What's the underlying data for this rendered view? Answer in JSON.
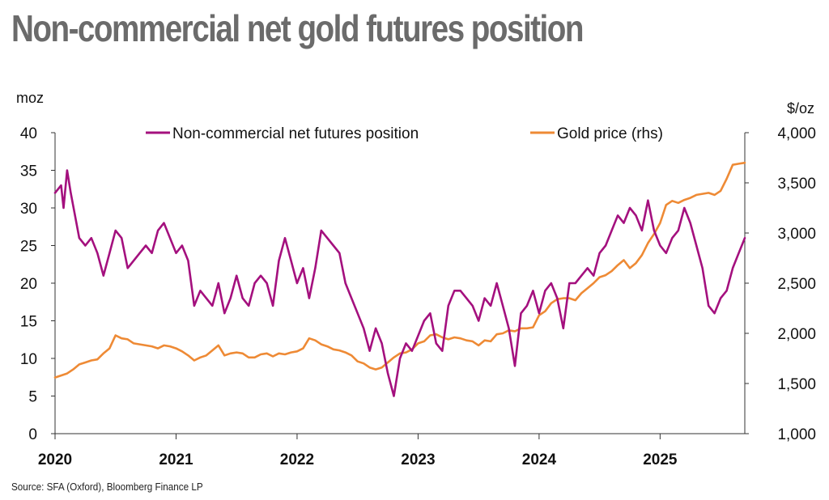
{
  "title": "Non-commercial net gold futures position",
  "source": "Source: SFA (Oxford), Bloomberg Finance LP",
  "chart_data": {
    "type": "line",
    "title": "Non-commercial net gold futures position",
    "y_left_label": "moz",
    "y_right_label": "$/oz",
    "y_left_lim": [
      0,
      40
    ],
    "y_left_ticks": [
      "0",
      "5",
      "10",
      "15",
      "20",
      "25",
      "30",
      "35",
      "40"
    ],
    "y_right_lim": [
      1000,
      4000
    ],
    "y_right_ticks": [
      "1,000",
      "1,500",
      "2,000",
      "2,500",
      "3,000",
      "3,500",
      "4,000"
    ],
    "x_lim": [
      2020.0,
      2025.7
    ],
    "x_ticks": [
      "2020",
      "2021",
      "2022",
      "2023",
      "2024",
      "2025"
    ],
    "grid": false,
    "legend_position": "top",
    "series": [
      {
        "name": "Non-commercial net futures position",
        "axis": "left",
        "color": "#a4107e",
        "x": [
          2020.0,
          2020.05,
          2020.07,
          2020.1,
          2020.13,
          2020.2,
          2020.25,
          2020.3,
          2020.35,
          2020.4,
          2020.45,
          2020.5,
          2020.55,
          2020.6,
          2020.65,
          2020.7,
          2020.75,
          2020.8,
          2020.85,
          2020.9,
          2020.95,
          2021.0,
          2021.05,
          2021.1,
          2021.15,
          2021.2,
          2021.25,
          2021.3,
          2021.35,
          2021.4,
          2021.45,
          2021.5,
          2021.55,
          2021.6,
          2021.65,
          2021.7,
          2021.75,
          2021.8,
          2021.85,
          2021.9,
          2021.95,
          2022.0,
          2022.05,
          2022.1,
          2022.15,
          2022.2,
          2022.25,
          2022.3,
          2022.35,
          2022.4,
          2022.45,
          2022.5,
          2022.55,
          2022.6,
          2022.65,
          2022.7,
          2022.75,
          2022.8,
          2022.85,
          2022.9,
          2022.95,
          2023.0,
          2023.05,
          2023.1,
          2023.15,
          2023.2,
          2023.25,
          2023.3,
          2023.35,
          2023.4,
          2023.45,
          2023.5,
          2023.55,
          2023.6,
          2023.65,
          2023.7,
          2023.75,
          2023.8,
          2023.85,
          2023.9,
          2023.95,
          2024.0,
          2024.05,
          2024.1,
          2024.15,
          2024.2,
          2024.25,
          2024.3,
          2024.35,
          2024.4,
          2024.45,
          2024.5,
          2024.55,
          2024.6,
          2024.65,
          2024.7,
          2024.75,
          2024.8,
          2024.85,
          2024.9,
          2024.95,
          2025.0,
          2025.05,
          2025.1,
          2025.15,
          2025.2,
          2025.25,
          2025.3,
          2025.35,
          2025.4,
          2025.45,
          2025.5,
          2025.55,
          2025.6,
          2025.65,
          2025.7
        ],
        "y": [
          32,
          33,
          30,
          35,
          32,
          26,
          25,
          26,
          24,
          21,
          24,
          27,
          26,
          22,
          23,
          24,
          25,
          24,
          27,
          28,
          26,
          24,
          25,
          23,
          17,
          19,
          18,
          17,
          20,
          16,
          18,
          21,
          18,
          17,
          20,
          21,
          20,
          17,
          23,
          26,
          23,
          20,
          22,
          18,
          22,
          27,
          26,
          25,
          24,
          20,
          18,
          16,
          14,
          11,
          14,
          12,
          8,
          5,
          10,
          12,
          11,
          13,
          15,
          16,
          12,
          11,
          17,
          19,
          19,
          18,
          17,
          15,
          18,
          17,
          20,
          17,
          14,
          9,
          16,
          17,
          19,
          16,
          19,
          20,
          18,
          14,
          20,
          20,
          21,
          22,
          21,
          24,
          25,
          27,
          29,
          28,
          30,
          29,
          27,
          31,
          27,
          25,
          24,
          26,
          27,
          30,
          28,
          25,
          22,
          17,
          16,
          18,
          19,
          22,
          24,
          26
        ],
        "note": "values read off chart, approximate"
      },
      {
        "name": "Gold price (rhs)",
        "axis": "right",
        "color": "#ee8a35",
        "x": [
          2020.0,
          2020.05,
          2020.1,
          2020.15,
          2020.2,
          2020.25,
          2020.3,
          2020.35,
          2020.4,
          2020.45,
          2020.5,
          2020.55,
          2020.6,
          2020.65,
          2020.7,
          2020.75,
          2020.8,
          2020.85,
          2020.9,
          2020.95,
          2021.0,
          2021.05,
          2021.1,
          2021.15,
          2021.2,
          2021.25,
          2021.3,
          2021.35,
          2021.4,
          2021.45,
          2021.5,
          2021.55,
          2021.6,
          2021.65,
          2021.7,
          2021.75,
          2021.8,
          2021.85,
          2021.9,
          2021.95,
          2022.0,
          2022.05,
          2022.1,
          2022.15,
          2022.2,
          2022.25,
          2022.3,
          2022.35,
          2022.4,
          2022.45,
          2022.5,
          2022.55,
          2022.6,
          2022.65,
          2022.7,
          2022.75,
          2022.8,
          2022.85,
          2022.9,
          2022.95,
          2023.0,
          2023.05,
          2023.1,
          2023.15,
          2023.2,
          2023.25,
          2023.3,
          2023.35,
          2023.4,
          2023.45,
          2023.5,
          2023.55,
          2023.6,
          2023.65,
          2023.7,
          2023.75,
          2023.8,
          2023.85,
          2023.9,
          2023.95,
          2024.0,
          2024.05,
          2024.1,
          2024.15,
          2024.2,
          2024.25,
          2024.3,
          2024.35,
          2024.4,
          2024.45,
          2024.5,
          2024.55,
          2024.6,
          2024.65,
          2024.7,
          2024.75,
          2024.8,
          2024.85,
          2024.9,
          2024.95,
          2025.0,
          2025.05,
          2025.1,
          2025.15,
          2025.2,
          2025.25,
          2025.3,
          2025.35,
          2025.4,
          2025.45,
          2025.5,
          2025.55,
          2025.6,
          2025.65,
          2025.7
        ],
        "y": [
          1560,
          1580,
          1600,
          1640,
          1690,
          1710,
          1730,
          1740,
          1800,
          1850,
          1980,
          1950,
          1940,
          1900,
          1890,
          1880,
          1870,
          1850,
          1880,
          1870,
          1850,
          1820,
          1780,
          1730,
          1760,
          1780,
          1830,
          1880,
          1780,
          1800,
          1810,
          1800,
          1760,
          1760,
          1790,
          1800,
          1770,
          1800,
          1790,
          1810,
          1820,
          1850,
          1950,
          1930,
          1890,
          1870,
          1840,
          1830,
          1810,
          1780,
          1720,
          1700,
          1660,
          1640,
          1660,
          1710,
          1760,
          1800,
          1810,
          1840,
          1900,
          1920,
          1980,
          1990,
          1960,
          1940,
          1960,
          1950,
          1930,
          1920,
          1880,
          1930,
          1920,
          1990,
          2000,
          2030,
          2020,
          2050,
          2050,
          2060,
          2180,
          2220,
          2300,
          2340,
          2350,
          2350,
          2330,
          2400,
          2450,
          2500,
          2560,
          2580,
          2620,
          2680,
          2730,
          2650,
          2700,
          2780,
          2900,
          2990,
          3100,
          3280,
          3320,
          3300,
          3330,
          3350,
          3380,
          3390,
          3400,
          3380,
          3420,
          3540,
          3680,
          3690,
          3700
        ],
        "note": "values read off chart, approximate"
      }
    ]
  }
}
